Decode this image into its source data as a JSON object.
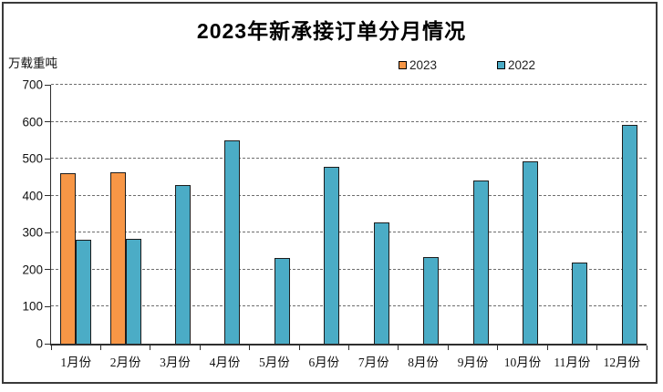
{
  "title": "2023年新承接订单分月情况",
  "y_unit_label": "万载重吨",
  "legend": [
    {
      "label": "2023",
      "color": "#F79646"
    },
    {
      "label": "2022",
      "color": "#4BACC6"
    }
  ],
  "colors": {
    "bar_2023": "#F79646",
    "bar_2022": "#4BACC6",
    "bar_border": "#1c1c1c",
    "axis": "#2e2e2e",
    "gridline": "#6e6e6e",
    "frame_border": "#3a3a3a",
    "background": "#ffffff"
  },
  "chart_data": {
    "type": "bar",
    "title": "2023年新承接订单分月情况",
    "xlabel": "",
    "ylabel": "万载重吨",
    "ylim": [
      0,
      700
    ],
    "ytick_interval": 100,
    "ytick_labels": [
      "0",
      "100",
      "200",
      "300",
      "400",
      "500",
      "600",
      "700"
    ],
    "grid": "horizontal-dashed",
    "legend_position": "top",
    "categories": [
      "1月份",
      "2月份",
      "3月份",
      "4月份",
      "5月份",
      "6月份",
      "7月份",
      "8月份",
      "9月份",
      "10月份",
      "11月份",
      "12月份"
    ],
    "series": [
      {
        "name": "2023",
        "color": "#F79646",
        "values": [
          461,
          463,
          null,
          null,
          null,
          null,
          null,
          null,
          null,
          null,
          null,
          null
        ]
      },
      {
        "name": "2022",
        "color": "#4BACC6",
        "values": [
          281,
          284,
          430,
          549,
          232,
          478,
          328,
          233,
          441,
          494,
          220,
          592
        ]
      }
    ]
  }
}
